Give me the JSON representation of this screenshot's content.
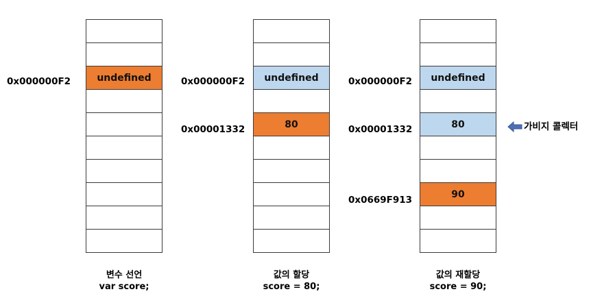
{
  "columns": [
    {
      "cells": [
        "",
        "",
        "undefined",
        "",
        "",
        "",
        "",
        "",
        "",
        ""
      ],
      "address": "0x000000F2",
      "caption": {
        "title": "변수 선언",
        "code": "var score;"
      }
    },
    {
      "cells": [
        "",
        "",
        "undefined",
        "",
        "80",
        "",
        "",
        "",
        "",
        ""
      ],
      "addresses": [
        "0x000000F2",
        "0x00001332"
      ],
      "caption": {
        "title": "값의 할당",
        "code": "score = 80;"
      }
    },
    {
      "cells": [
        "",
        "",
        "undefined",
        "",
        "80",
        "",
        "",
        "90",
        "",
        ""
      ],
      "addresses": [
        "0x000000F2",
        "0x00001332",
        "0x0669F913"
      ],
      "caption": {
        "title": "값의 재할당",
        "code": "score = 90;"
      }
    }
  ],
  "garbage_collector": {
    "label": "가비지 콜렉터",
    "icon": "left-arrow-icon"
  },
  "colors": {
    "current_value": "#ed7d31",
    "previous_value": "#bdd7ee",
    "empty_cell": "#ffffff",
    "arrow": "#4f6fb4"
  }
}
